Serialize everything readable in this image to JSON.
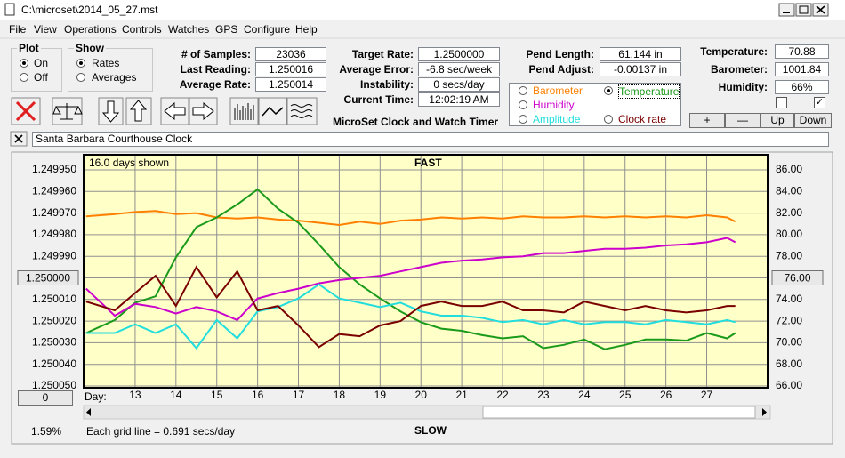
{
  "window": {
    "title": "C:\\microset\\2014_05_27.mst"
  },
  "menu": [
    "File",
    "View",
    "Operations",
    "Controls",
    "Watches",
    "GPS",
    "Configure",
    "Help"
  ],
  "plot_group": {
    "title": "Plot",
    "options": [
      "On",
      "Off"
    ]
  },
  "show_group": {
    "title": "Show",
    "options": [
      "Rates",
      "Averages"
    ]
  },
  "readings": [
    {
      "label": "# of Samples:",
      "value": "23036"
    },
    {
      "label": "Last Reading:",
      "value": "1.250016"
    },
    {
      "label": "Average Rate:",
      "value": "1.250014"
    }
  ],
  "targets": [
    {
      "label": "Target Rate:",
      "value": "1.2500000"
    },
    {
      "label": "Average Error:",
      "value": "-6.8 sec/week"
    },
    {
      "label": "Instability:",
      "value": "0 secs/day"
    },
    {
      "label": "Current Time:",
      "value": "12:02:19 AM"
    }
  ],
  "pendulum": [
    {
      "label": "Pend Length:",
      "value": "61.144 in"
    },
    {
      "label": "Pend Adjust:",
      "value": "-0.00137 in"
    }
  ],
  "environment": [
    {
      "label": "Temperature:",
      "value": "70.88"
    },
    {
      "label": "Barometer:",
      "value": "1001.84"
    },
    {
      "label": "Humidity:",
      "value": "66%"
    }
  ],
  "timer_title": "MicroSet Clock and Watch Timer",
  "scale_buttons": [
    "+",
    "—",
    "Up",
    "Down"
  ],
  "clock_name": "Santa Barbara Courthouse Clock",
  "offset_button": "0",
  "percent": "1.59%",
  "chart_data": {
    "type": "line",
    "title": "FAST",
    "bottom_label": "SLOW",
    "days_shown": "16.0 days shown",
    "grid_note": "Each grid line = 0.691 secs/day",
    "xlabel": "Day:",
    "grid": true,
    "x": [
      11.8,
      12.5,
      13,
      13.5,
      14,
      14.5,
      15,
      15.5,
      16,
      16.5,
      17,
      17.5,
      18,
      18.5,
      19,
      19.5,
      20,
      20.5,
      21,
      21.5,
      22,
      22.5,
      23,
      23.5,
      24,
      24.5,
      25,
      25.5,
      26,
      26.5,
      27,
      27.5,
      27.7
    ],
    "xlim": [
      11.76,
      28.47
    ],
    "xticks": [
      13,
      14,
      15,
      16,
      17,
      18,
      19,
      20,
      21,
      22,
      23,
      24,
      25,
      26,
      27
    ],
    "ylim": [
      1.25005,
      1.24995
    ],
    "yticks": [
      {
        "value": 1.24995,
        "label": "1.249950"
      },
      {
        "value": 1.24996,
        "label": "1.249960"
      },
      {
        "value": 1.24997,
        "label": "1.249970"
      },
      {
        "value": 1.24998,
        "label": "1.249980"
      },
      {
        "value": 1.24999,
        "label": "1.249990"
      },
      {
        "value": 1.25,
        "label": "1.250000"
      },
      {
        "value": 1.25001,
        "label": "1.250010"
      },
      {
        "value": 1.25002,
        "label": "1.250020"
      },
      {
        "value": 1.25003,
        "label": "1.250030"
      },
      {
        "value": 1.25004,
        "label": "1.250040"
      },
      {
        "value": 1.25005,
        "label": "1.250050"
      }
    ],
    "y2lim": [
      66,
      86
    ],
    "y2ticks": [
      {
        "value": 86,
        "label": "86.00"
      },
      {
        "value": 84,
        "label": "84.00"
      },
      {
        "value": 82,
        "label": "82.00"
      },
      {
        "value": 80,
        "label": "80.00"
      },
      {
        "value": 78,
        "label": "78.00"
      },
      {
        "value": 76,
        "label": "76.00"
      },
      {
        "value": 74,
        "label": "74.00"
      },
      {
        "value": 72,
        "label": "72.00"
      },
      {
        "value": 70,
        "label": "70.00"
      },
      {
        "value": 68,
        "label": "68.00"
      },
      {
        "value": 66,
        "label": "66.00"
      }
    ],
    "series": [
      {
        "name": "Barometer",
        "color": "#ff8000",
        "axis": "y2",
        "values": [
          81.7,
          81.9,
          82.1,
          82.2,
          81.9,
          82.0,
          81.6,
          81.5,
          81.6,
          81.4,
          81.3,
          81.1,
          80.9,
          81.2,
          81.0,
          81.3,
          81.4,
          81.6,
          81.5,
          81.6,
          81.5,
          81.7,
          81.6,
          81.6,
          81.7,
          81.6,
          81.7,
          81.6,
          81.7,
          81.6,
          81.8,
          81.6,
          81.2
        ]
      },
      {
        "name": "Temperature",
        "color": "#1a9a1a",
        "axis": "y2",
        "values": [
          70.9,
          72.1,
          73.7,
          74.3,
          77.9,
          80.7,
          81.6,
          82.8,
          84.2,
          82.4,
          81.1,
          79.1,
          77.0,
          75.4,
          74.1,
          72.9,
          71.9,
          71.3,
          71.1,
          70.7,
          70.4,
          70.6,
          69.5,
          69.8,
          70.3,
          69.4,
          69.8,
          70.3,
          70.3,
          70.2,
          70.9,
          70.4,
          70.9
        ]
      },
      {
        "name": "Humidity",
        "color": "#cc00cc",
        "axis": "y2",
        "values": [
          75.0,
          72.5,
          73.6,
          73.3,
          72.7,
          73.3,
          72.9,
          72.1,
          74.1,
          74.6,
          75.0,
          75.5,
          75.8,
          76.0,
          76.2,
          76.6,
          77.0,
          77.4,
          77.6,
          77.7,
          77.9,
          78.0,
          78.3,
          78.3,
          78.5,
          78.7,
          78.7,
          78.8,
          79.0,
          79.1,
          79.3,
          79.7,
          79.3
        ]
      },
      {
        "name": "Amplitude",
        "color": "#22dddd",
        "axis": "y2",
        "values": [
          70.9,
          70.9,
          71.7,
          70.9,
          71.7,
          69.5,
          72.1,
          70.4,
          72.9,
          73.3,
          74.1,
          75.4,
          74.1,
          73.7,
          73.3,
          73.7,
          72.9,
          72.5,
          72.5,
          72.3,
          71.9,
          72.1,
          71.7,
          72.1,
          71.7,
          71.9,
          71.9,
          71.7,
          72.1,
          71.9,
          71.7,
          72.1,
          71.9
        ]
      },
      {
        "name": "Clock rate",
        "color": "#7a0000",
        "axis": "y",
        "values": [
          1.250011,
          1.250015,
          1.250007,
          1.249999,
          1.250013,
          1.249995,
          1.250009,
          1.249997,
          1.250015,
          1.250013,
          1.250022,
          1.250032,
          1.250026,
          1.250027,
          1.250022,
          1.25002,
          1.250013,
          1.250011,
          1.250013,
          1.250013,
          1.250011,
          1.250015,
          1.250015,
          1.250016,
          1.250011,
          1.250013,
          1.250015,
          1.250013,
          1.250015,
          1.250016,
          1.250015,
          1.250013,
          1.250013
        ]
      }
    ]
  }
}
